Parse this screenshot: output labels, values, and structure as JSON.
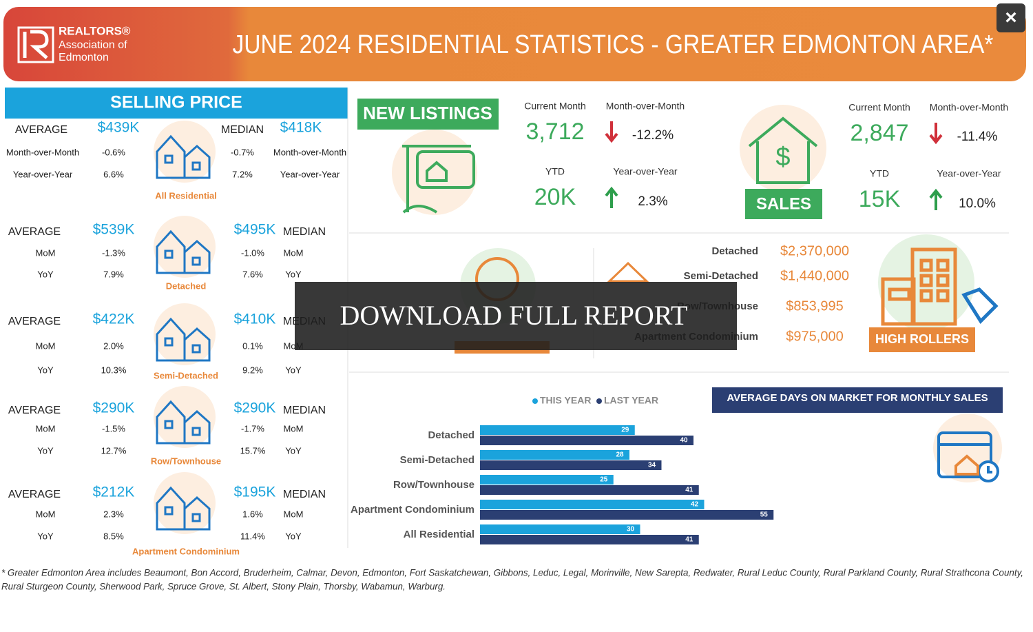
{
  "header": {
    "logo": [
      "REALTORS®",
      "Association of",
      "Edmonton"
    ],
    "title": "JUNE 2024 RESIDENTIAL STATISTICS - GREATER EDMONTON AREA*",
    "close": "×"
  },
  "selling_price": {
    "title": "SELLING PRICE",
    "average_label": "AVERAGE",
    "median_label": "MEDIAN",
    "groups": [
      {
        "name": "All Residential",
        "average": "$439K",
        "median": "$418K",
        "rows": [
          {
            "label": "Month-over-Month",
            "average": "-0.6%",
            "median": "-0.7%"
          },
          {
            "label": "Year-over-Year",
            "average": "6.6%",
            "median": "7.2%"
          }
        ]
      },
      {
        "name": "Detached",
        "average": "$539K",
        "median": "$495K",
        "rows": [
          {
            "label": "MoM",
            "average": "-1.3%",
            "median": "-1.0%"
          },
          {
            "label": "YoY",
            "average": "7.9%",
            "median": "7.6%"
          }
        ]
      },
      {
        "name": "Semi-Detached",
        "average": "$422K",
        "median": "$410K",
        "rows": [
          {
            "label": "MoM",
            "average": "2.0%",
            "median": "0.1%"
          },
          {
            "label": "YoY",
            "average": "10.3%",
            "median": "9.2%"
          }
        ]
      },
      {
        "name": "Row/Townhouse",
        "average": "$290K",
        "median": "$290K",
        "rows": [
          {
            "label": "MoM",
            "average": "-1.5%",
            "median": "-1.7%"
          },
          {
            "label": "YoY",
            "average": "12.7%",
            "median": "15.7%"
          }
        ]
      },
      {
        "name": "Apartment Condominium",
        "average": "$212K",
        "median": "$195K",
        "rows": [
          {
            "label": "MoM",
            "average": "2.3%",
            "median": "1.6%"
          },
          {
            "label": "YoY",
            "average": "8.5%",
            "median": "11.4%"
          }
        ]
      }
    ]
  },
  "new_listings": {
    "title": "NEW  LISTINGS",
    "current_label": "Current Month",
    "current": "3,712",
    "mom_label": "Month-over-Month",
    "mom": "-12.2%",
    "ytd_label": "YTD",
    "ytd": "20K",
    "yoy_label": "Year-over-Year",
    "yoy": "2.3%"
  },
  "sales": {
    "title": "SALES",
    "current_label": "Current Month",
    "current": "2,847",
    "mom_label": "Month-over-Month",
    "mom": "-11.4%",
    "ytd_label": "YTD",
    "ytd": "15K",
    "yoy_label": "Year-over-Year",
    "yoy": "10.0%"
  },
  "high_rollers": {
    "title": "HIGH ROLLERS",
    "rows": [
      {
        "label": "Detached",
        "value": "$2,370,000"
      },
      {
        "label": "Semi-Detached",
        "value": "$1,440,000"
      },
      {
        "label": "Row/Townhouse",
        "value": "$853,995"
      },
      {
        "label": "Apartment Condominium",
        "value": "$975,000"
      }
    ]
  },
  "chart_data": {
    "type": "bar",
    "orientation": "horizontal",
    "title": "AVERAGE DAYS ON MARKET FOR MONTHLY SALES",
    "categories": [
      "Detached",
      "Semi-Detached",
      "Row/Townhouse",
      "Apartment Condominium",
      "All Residential"
    ],
    "series": [
      {
        "name": "THIS YEAR",
        "color": "#1ba3dc",
        "values": [
          29,
          28,
          25,
          42,
          30
        ]
      },
      {
        "name": "LAST YEAR",
        "color": "#2b3f73",
        "values": [
          40,
          34,
          41,
          55,
          41
        ]
      }
    ]
  },
  "download": "DOWNLOAD FULL REPORT",
  "footnote": [
    "* Greater Edmonton Area includes Beaumont, Bon Accord, Bruderheim, Calmar, Devon, Edmonton, Fort Saskatchewan, Gibbons, Leduc, Legal, Morinville, New Sarepta, Redwater, Rural Leduc County, Rural Parkland County, Rural Strathcona County,",
    "Rural Sturgeon County, Sherwood Park, Spruce Grove, St. Albert, Stony Plain, Thorsby, Wabamun, Warburg."
  ]
}
